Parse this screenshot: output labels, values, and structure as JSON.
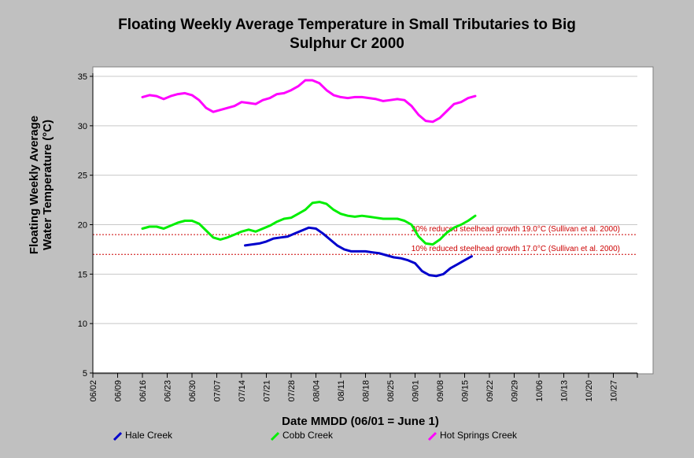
{
  "chart_data": {
    "type": "line",
    "title_lines": [
      "Floating Weekly Average Temperature in Small Tributaries to Big",
      "Sulphur Cr 2000"
    ],
    "xlabel": "Date MMDD (06/01 = June 1)",
    "ylabel_lines": [
      "Floating Weekly Average",
      "Water Temperature (°C)"
    ],
    "x_tick_labels": [
      "06/02",
      "06/09",
      "06/16",
      "06/23",
      "06/30",
      "07/07",
      "07/14",
      "07/21",
      "07/28",
      "08/04",
      "08/11",
      "08/18",
      "08/25",
      "09/01",
      "09/08",
      "09/15",
      "09/22",
      "09/29",
      "10/06",
      "10/13",
      "10/20",
      "10/27"
    ],
    "ylim": [
      5,
      35
    ],
    "y_ticks": [
      5,
      10,
      15,
      20,
      25,
      30,
      35
    ],
    "grid": "horizontal",
    "reference_lines": [
      {
        "value": 19.0,
        "label": "20% reduced steelhead growth 19.0°C (Sullivan et al. 2000)",
        "color": "#cc0000"
      },
      {
        "value": 17.0,
        "label": "10% reduced steelhead growth 17.0°C (Sullivan et al. 2000)",
        "color": "#cc0000"
      }
    ],
    "series": [
      {
        "name": "Hale Creek",
        "color": "#0000cc",
        "x": [
          "07/15",
          "07/17",
          "07/19",
          "07/21",
          "07/23",
          "07/25",
          "07/27",
          "07/29",
          "07/31",
          "08/02",
          "08/04",
          "08/06",
          "08/08",
          "08/10",
          "08/12",
          "08/14",
          "08/16",
          "08/18",
          "08/20",
          "08/22",
          "08/24",
          "08/26",
          "08/28",
          "08/30",
          "09/01",
          "09/03",
          "09/05",
          "09/07",
          "09/09",
          "09/11",
          "09/13",
          "09/15",
          "09/17"
        ],
        "values": [
          17.9,
          18.0,
          18.1,
          18.3,
          18.6,
          18.7,
          18.8,
          19.1,
          19.4,
          19.7,
          19.6,
          19.1,
          18.5,
          17.9,
          17.5,
          17.3,
          17.3,
          17.3,
          17.2,
          17.1,
          16.9,
          16.7,
          16.6,
          16.4,
          16.1,
          15.3,
          14.9,
          14.8,
          15.0,
          15.6,
          16.0,
          16.4,
          16.8
        ]
      },
      {
        "name": "Cobb Creek",
        "color": "#00ee00",
        "x": [
          "06/16",
          "06/18",
          "06/20",
          "06/22",
          "06/24",
          "06/26",
          "06/28",
          "06/30",
          "07/02",
          "07/04",
          "07/06",
          "07/08",
          "07/10",
          "07/12",
          "07/14",
          "07/16",
          "07/18",
          "07/20",
          "07/22",
          "07/24",
          "07/26",
          "07/28",
          "07/30",
          "08/01",
          "08/03",
          "08/05",
          "08/07",
          "08/09",
          "08/11",
          "08/13",
          "08/15",
          "08/17",
          "08/19",
          "08/21",
          "08/23",
          "08/25",
          "08/27",
          "08/29",
          "08/31",
          "09/02",
          "09/04",
          "09/06",
          "09/08",
          "09/10",
          "09/12",
          "09/14",
          "09/16",
          "09/18"
        ],
        "values": [
          19.6,
          19.8,
          19.8,
          19.6,
          19.9,
          20.2,
          20.4,
          20.4,
          20.1,
          19.4,
          18.7,
          18.5,
          18.7,
          19.0,
          19.3,
          19.5,
          19.3,
          19.6,
          19.9,
          20.3,
          20.6,
          20.7,
          21.1,
          21.5,
          22.2,
          22.3,
          22.1,
          21.5,
          21.1,
          20.9,
          20.8,
          20.9,
          20.8,
          20.7,
          20.6,
          20.6,
          20.6,
          20.4,
          20.0,
          18.8,
          18.1,
          18.0,
          18.5,
          19.2,
          19.7,
          20.0,
          20.4,
          20.9
        ]
      },
      {
        "name": "Hot Springs Creek",
        "color": "#ff00ff",
        "x": [
          "06/16",
          "06/18",
          "06/20",
          "06/22",
          "06/24",
          "06/26",
          "06/28",
          "06/30",
          "07/02",
          "07/04",
          "07/06",
          "07/08",
          "07/10",
          "07/12",
          "07/14",
          "07/16",
          "07/18",
          "07/20",
          "07/22",
          "07/24",
          "07/26",
          "07/28",
          "07/30",
          "08/01",
          "08/03",
          "08/05",
          "08/07",
          "08/09",
          "08/11",
          "08/13",
          "08/15",
          "08/17",
          "08/19",
          "08/21",
          "08/23",
          "08/25",
          "08/27",
          "08/29",
          "08/31",
          "09/02",
          "09/04",
          "09/06",
          "09/08",
          "09/10",
          "09/12",
          "09/14",
          "09/16",
          "09/18"
        ],
        "values": [
          32.9,
          33.1,
          33.0,
          32.7,
          33.0,
          33.2,
          33.3,
          33.1,
          32.6,
          31.8,
          31.4,
          31.6,
          31.8,
          32.0,
          32.4,
          32.3,
          32.2,
          32.6,
          32.8,
          33.2,
          33.3,
          33.6,
          34.0,
          34.6,
          34.6,
          34.3,
          33.6,
          33.1,
          32.9,
          32.8,
          32.9,
          32.9,
          32.8,
          32.7,
          32.5,
          32.6,
          32.7,
          32.6,
          32.0,
          31.1,
          30.5,
          30.4,
          30.8,
          31.5,
          32.2,
          32.4,
          32.8,
          33.0
        ]
      }
    ]
  },
  "legend": {
    "items": [
      {
        "label": "Hale Creek",
        "color": "#0000cc"
      },
      {
        "label": "Cobb Creek",
        "color": "#00ee00"
      },
      {
        "label": "Hot Springs Creek",
        "color": "#ff00ff"
      }
    ]
  }
}
